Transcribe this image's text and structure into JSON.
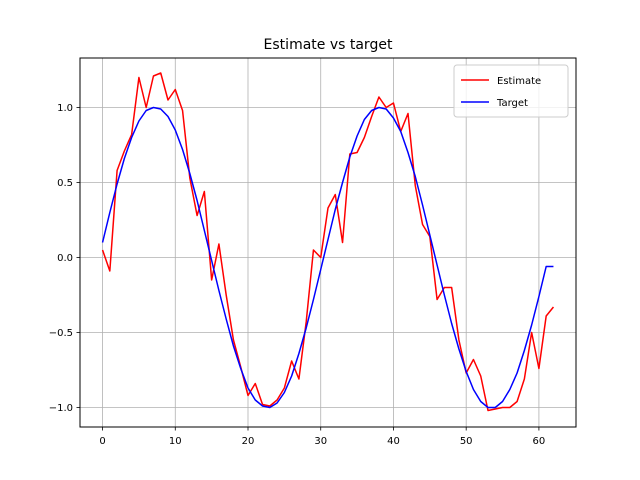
{
  "chart_data": {
    "type": "line",
    "title": "Estimate vs target",
    "xlabel": "",
    "ylabel": "",
    "xlim": [
      -3.1,
      65.1
    ],
    "ylim": [
      -1.13,
      1.33
    ],
    "xticks": [
      0,
      10,
      20,
      30,
      40,
      50,
      60
    ],
    "yticks": [
      -1.0,
      -0.5,
      0.0,
      0.5,
      1.0
    ],
    "ytick_labels": [
      "−1.0",
      "−0.5",
      "0.0",
      "0.5",
      "1.0"
    ],
    "grid": true,
    "legend_position": "top-right",
    "x": [
      0,
      1,
      2,
      3,
      4,
      5,
      6,
      7,
      8,
      9,
      10,
      11,
      12,
      13,
      14,
      15,
      16,
      17,
      18,
      19,
      20,
      21,
      22,
      23,
      24,
      25,
      26,
      27,
      28,
      29,
      30,
      31,
      32,
      33,
      34,
      35,
      36,
      37,
      38,
      39,
      40,
      41,
      42,
      43,
      44,
      45,
      46,
      47,
      48,
      49,
      50,
      51,
      52,
      53,
      54,
      55,
      56,
      57,
      58,
      59,
      60,
      61,
      62
    ],
    "series": [
      {
        "name": "Estimate",
        "color": "#ff0000",
        "values": [
          0.05,
          -0.09,
          0.58,
          0.71,
          0.82,
          1.2,
          1.0,
          1.21,
          1.23,
          1.05,
          1.12,
          0.98,
          0.53,
          0.28,
          0.44,
          -0.15,
          0.09,
          -0.25,
          -0.55,
          -0.73,
          -0.92,
          -0.84,
          -0.98,
          -0.99,
          -0.95,
          -0.87,
          -0.69,
          -0.81,
          -0.43,
          0.05,
          0.0,
          0.33,
          0.42,
          0.1,
          0.69,
          0.7,
          0.8,
          0.94,
          1.07,
          1.0,
          1.03,
          0.84,
          0.96,
          0.48,
          0.22,
          0.14,
          -0.28,
          -0.2,
          -0.2,
          -0.55,
          -0.77,
          -0.68,
          -0.79,
          -1.02,
          -1.01,
          -1.0,
          -1.0,
          -0.96,
          -0.81,
          -0.5,
          -0.74,
          -0.39,
          -0.33
        ]
      },
      {
        "name": "Target",
        "color": "#0000ff",
        "values": [
          0.1,
          0.3,
          0.49,
          0.66,
          0.8,
          0.91,
          0.98,
          1.0,
          0.99,
          0.94,
          0.85,
          0.72,
          0.56,
          0.38,
          0.18,
          -0.02,
          -0.22,
          -0.41,
          -0.59,
          -0.74,
          -0.87,
          -0.95,
          -0.99,
          -1.0,
          -0.97,
          -0.9,
          -0.79,
          -0.64,
          -0.47,
          -0.28,
          -0.08,
          0.12,
          0.32,
          0.5,
          0.67,
          0.81,
          0.92,
          0.98,
          1.0,
          0.99,
          0.93,
          0.84,
          0.7,
          0.54,
          0.35,
          0.15,
          -0.05,
          -0.25,
          -0.44,
          -0.61,
          -0.76,
          -0.88,
          -0.96,
          -1.0,
          -1.0,
          -0.96,
          -0.88,
          -0.77,
          -0.62,
          -0.45,
          -0.26,
          -0.06,
          -0.06
        ]
      }
    ]
  }
}
